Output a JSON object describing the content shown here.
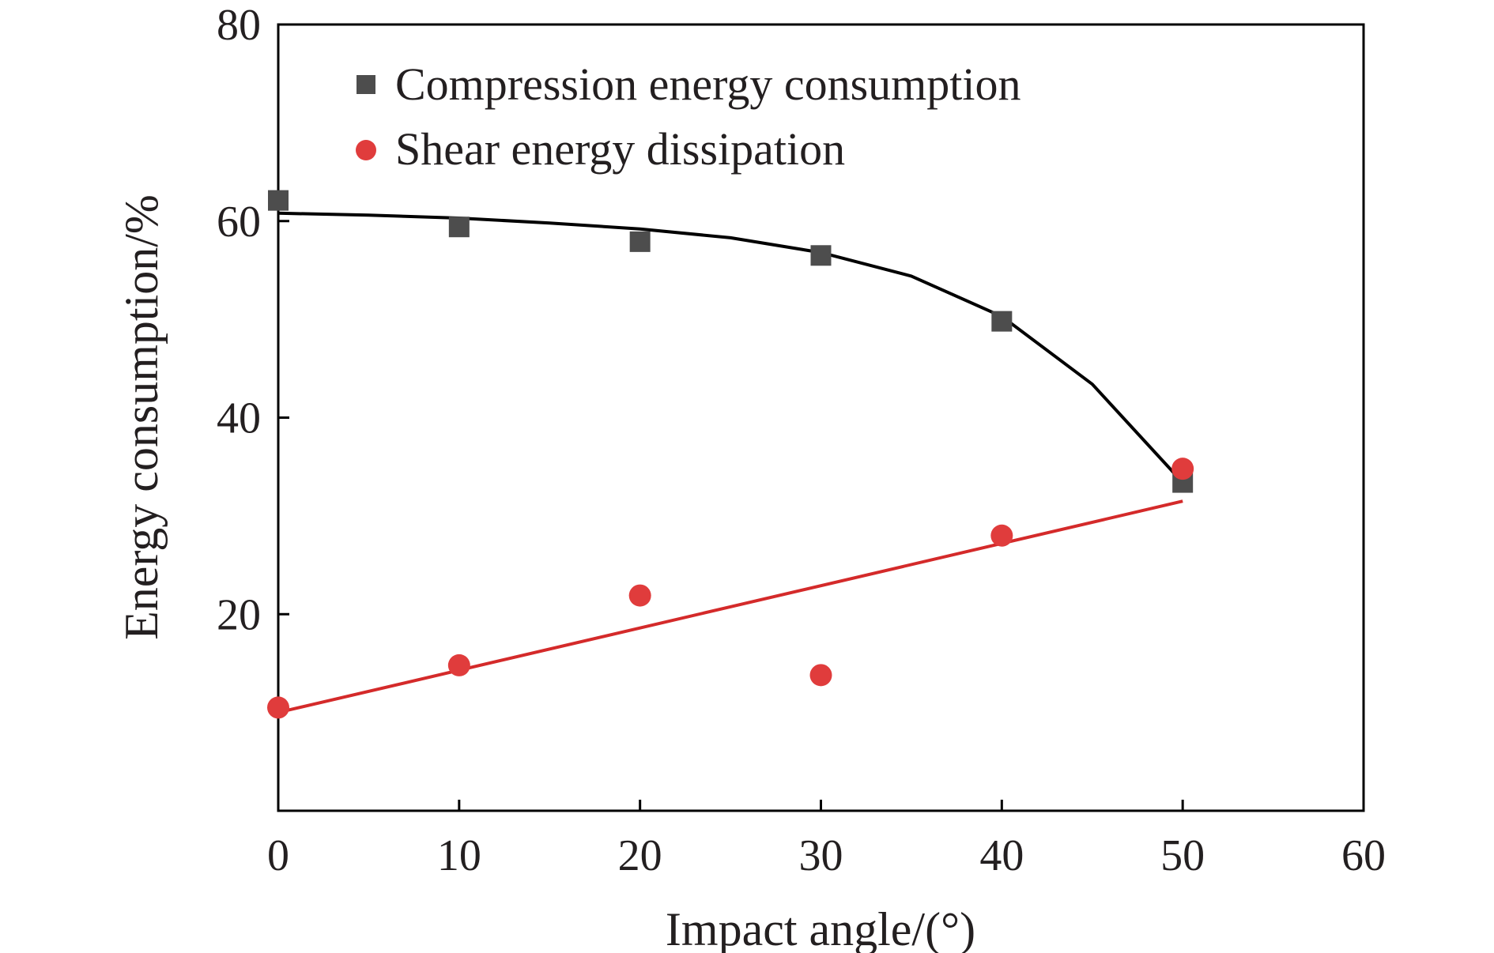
{
  "chart_data": {
    "type": "scatter",
    "title": "",
    "xlabel": "Impact angle/(°)",
    "ylabel": "Energy consumption/%",
    "xlim": [
      0,
      60
    ],
    "ylim": [
      0,
      80
    ],
    "x_ticks": [
      0,
      10,
      20,
      30,
      40,
      50,
      60
    ],
    "y_ticks": [
      20,
      40,
      60,
      80
    ],
    "grid": false,
    "legend_position": "top-left",
    "series": [
      {
        "name": "Compression energy consumption",
        "marker": "square",
        "color": "#4d4d4d",
        "x": [
          0,
          10,
          20,
          30,
          40,
          50
        ],
        "y": [
          62.1,
          59.4,
          57.9,
          56.5,
          49.8,
          33.4
        ]
      },
      {
        "name": "Shear energy dissipation",
        "marker": "circle",
        "color": "#e03c3c",
        "x": [
          0,
          10,
          20,
          30,
          40,
          50
        ],
        "y": [
          10.5,
          14.8,
          21.9,
          13.8,
          28.0,
          34.8
        ]
      }
    ],
    "fits": [
      {
        "color": "#000000",
        "x": [
          0,
          5,
          10,
          15,
          20,
          25,
          30,
          35,
          40,
          45,
          50
        ],
        "y": [
          60.8,
          60.6,
          60.3,
          59.8,
          59.2,
          58.3,
          56.8,
          54.4,
          50.3,
          43.4,
          33.4
        ]
      },
      {
        "color": "#d42a2a",
        "x": [
          0,
          50
        ],
        "y": [
          10.0,
          31.5
        ]
      }
    ]
  }
}
